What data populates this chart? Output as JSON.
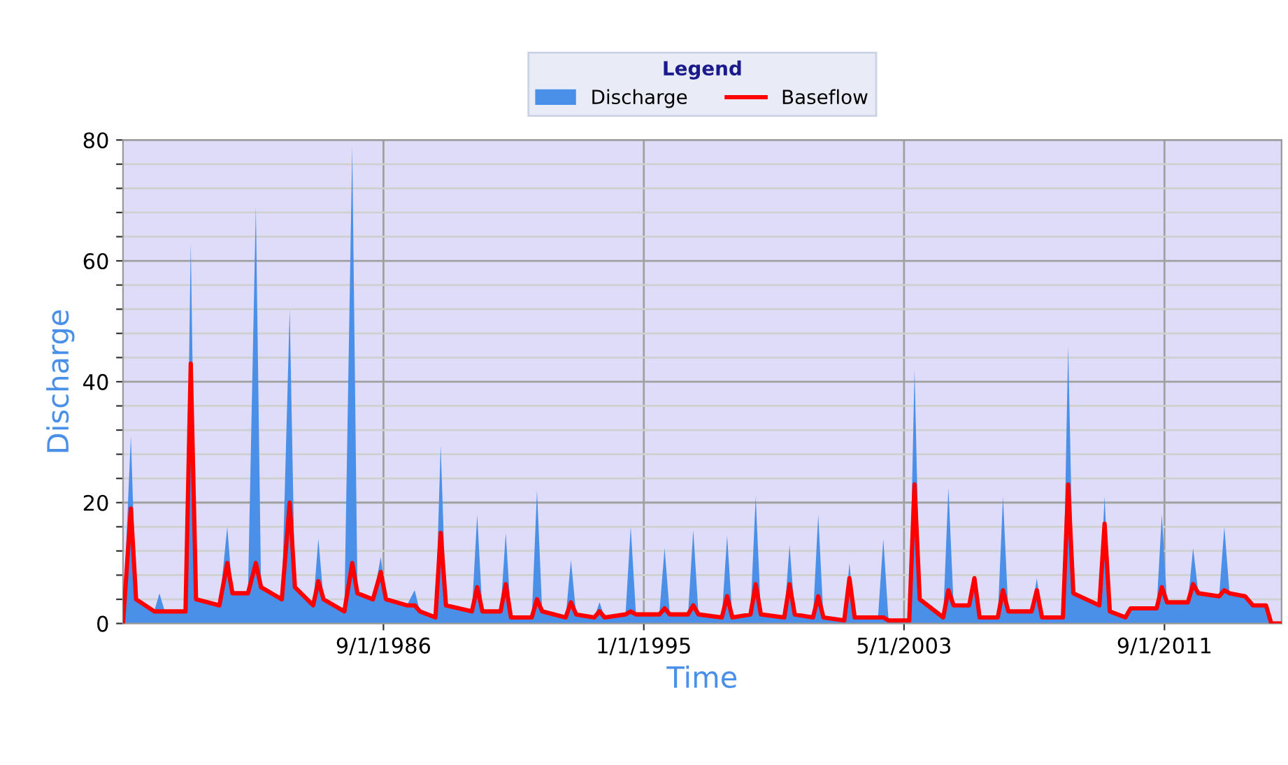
{
  "chart_data": {
    "type": "area",
    "xlabel": "Time",
    "ylabel": "Discharge",
    "legend_title": "Legend",
    "legend": "top",
    "grid": true,
    "xlim": [
      "1978-05",
      "2015-06"
    ],
    "ylim": [
      0,
      80
    ],
    "xticks": [
      {
        "value": "1986-09-01",
        "label": "9/1/1986"
      },
      {
        "value": "1995-01-01",
        "label": "1/1/1995"
      },
      {
        "value": "2003-05-01",
        "label": "5/1/2003"
      },
      {
        "value": "2011-09-01",
        "label": "9/1/2011"
      }
    ],
    "yticks": [
      0,
      {
        "value": 4,
        "label": null
      },
      {
        "value": 8,
        "label": null
      },
      {
        "value": 12,
        "label": null
      },
      {
        "value": 16,
        "label": null
      },
      20,
      {
        "value": 24,
        "label": null
      },
      {
        "value": 28,
        "label": null
      },
      {
        "value": 32,
        "label": null
      },
      {
        "value": 36,
        "label": null
      },
      40,
      {
        "value": 44,
        "label": null
      },
      {
        "value": 48,
        "label": null
      },
      {
        "value": 52,
        "label": null
      },
      {
        "value": 56,
        "label": null
      },
      60,
      {
        "value": 64,
        "label": null
      },
      {
        "value": 68,
        "label": null
      },
      {
        "value": 72,
        "label": null
      },
      {
        "value": 76,
        "label": null
      },
      80
    ],
    "x": [
      "1978-05",
      "1978-08",
      "1978-10",
      "1979-05",
      "1979-07",
      "1979-09",
      "1980-05",
      "1980-07",
      "1980-09",
      "1981-06",
      "1981-09",
      "1981-11",
      "1982-05",
      "1982-08",
      "1982-10",
      "1983-06",
      "1983-09",
      "1983-11",
      "1984-06",
      "1984-08",
      "1984-10",
      "1985-06",
      "1985-09",
      "1985-11",
      "1986-05",
      "1986-08",
      "1986-10",
      "1987-06",
      "1987-09",
      "1987-11",
      "1988-05",
      "1988-07",
      "1988-09",
      "1989-07",
      "1989-09",
      "1989-11",
      "1990-06",
      "1990-08",
      "1990-10",
      "1991-06",
      "1991-08",
      "1991-10",
      "1992-07",
      "1992-09",
      "1992-11",
      "1993-06",
      "1993-08",
      "1993-10",
      "1994-06",
      "1994-08",
      "1994-10",
      "1995-07",
      "1995-09",
      "1995-11",
      "1996-06",
      "1996-08",
      "1996-10",
      "1997-07",
      "1997-09",
      "1997-11",
      "1998-06",
      "1998-08",
      "1998-10",
      "1999-07",
      "1999-09",
      "1999-11",
      "2000-06",
      "2000-08",
      "2000-10",
      "2001-06",
      "2001-08",
      "2001-10",
      "2002-07",
      "2002-09",
      "2002-11",
      "2003-07",
      "2003-09",
      "2003-11",
      "2004-08",
      "2004-10",
      "2004-12",
      "2005-06",
      "2005-08",
      "2005-10",
      "2006-05",
      "2006-07",
      "2006-09",
      "2007-06",
      "2007-08",
      "2007-10",
      "2008-06",
      "2008-08",
      "2008-10",
      "2009-08",
      "2009-10",
      "2009-12",
      "2010-06",
      "2010-08",
      "2011-06",
      "2011-08",
      "2011-10",
      "2012-06",
      "2012-08",
      "2012-10",
      "2013-06",
      "2013-08",
      "2013-10",
      "2014-04",
      "2014-07",
      "2014-12",
      "2015-02",
      "2015-06"
    ],
    "series": [
      {
        "name": "Discharge",
        "color": "#4a8fe8",
        "values": [
          1,
          31,
          4,
          2,
          5,
          2,
          2,
          63,
          4,
          3,
          16,
          5,
          5,
          69,
          6,
          4,
          52,
          6,
          3,
          14,
          4,
          2,
          79,
          5,
          4,
          11,
          4,
          3,
          5.5,
          2,
          1,
          29.5,
          3,
          2,
          18,
          2,
          2,
          15,
          1,
          1,
          22,
          2,
          1,
          10.5,
          1.5,
          1,
          3.5,
          1,
          1.5,
          16,
          1.5,
          1.5,
          12.5,
          1.5,
          1.5,
          15.5,
          1.5,
          1,
          14.5,
          1,
          1.5,
          21,
          1.5,
          1,
          13,
          1.5,
          1,
          18,
          1,
          0.5,
          10,
          1,
          1,
          14,
          0.5,
          0.5,
          42,
          4,
          1,
          22.5,
          3,
          3,
          7.5,
          1,
          1,
          21,
          2,
          2,
          7.5,
          1,
          1,
          46,
          5,
          3,
          21,
          2,
          1,
          2.5,
          2.5,
          18,
          3.5,
          3.5,
          12.5,
          5,
          4.5,
          16,
          5,
          4.5,
          3,
          3,
          0,
          0
        ]
      },
      {
        "name": "Baseflow",
        "type": "line",
        "color": "#ff0000",
        "values": [
          0,
          19,
          4,
          2,
          2,
          2,
          2,
          43,
          4,
          3,
          10,
          5,
          5,
          10,
          6,
          4,
          20,
          6,
          3,
          7,
          4,
          2,
          10,
          5,
          4,
          8.5,
          4,
          3,
          3,
          2,
          1,
          15,
          3,
          2,
          6,
          2,
          2,
          6.5,
          1,
          1,
          4,
          2,
          1,
          3.5,
          1.5,
          1,
          2,
          1,
          1.5,
          2,
          1.5,
          1.5,
          2.5,
          1.5,
          1.5,
          3,
          1.5,
          1,
          4.5,
          1,
          1.5,
          6.5,
          1.5,
          1,
          6.5,
          1.5,
          1,
          4.5,
          1,
          0.5,
          7.5,
          1,
          1,
          1,
          0.5,
          0.5,
          23,
          4,
          1,
          5.5,
          3,
          3,
          7.5,
          1,
          1,
          5.5,
          2,
          2,
          5.5,
          1,
          1,
          23,
          5,
          3,
          16.5,
          2,
          1,
          2.5,
          2.5,
          6,
          3.5,
          3.5,
          6.5,
          5,
          4.5,
          5.5,
          5,
          4.5,
          3,
          3,
          0,
          0
        ]
      }
    ]
  }
}
